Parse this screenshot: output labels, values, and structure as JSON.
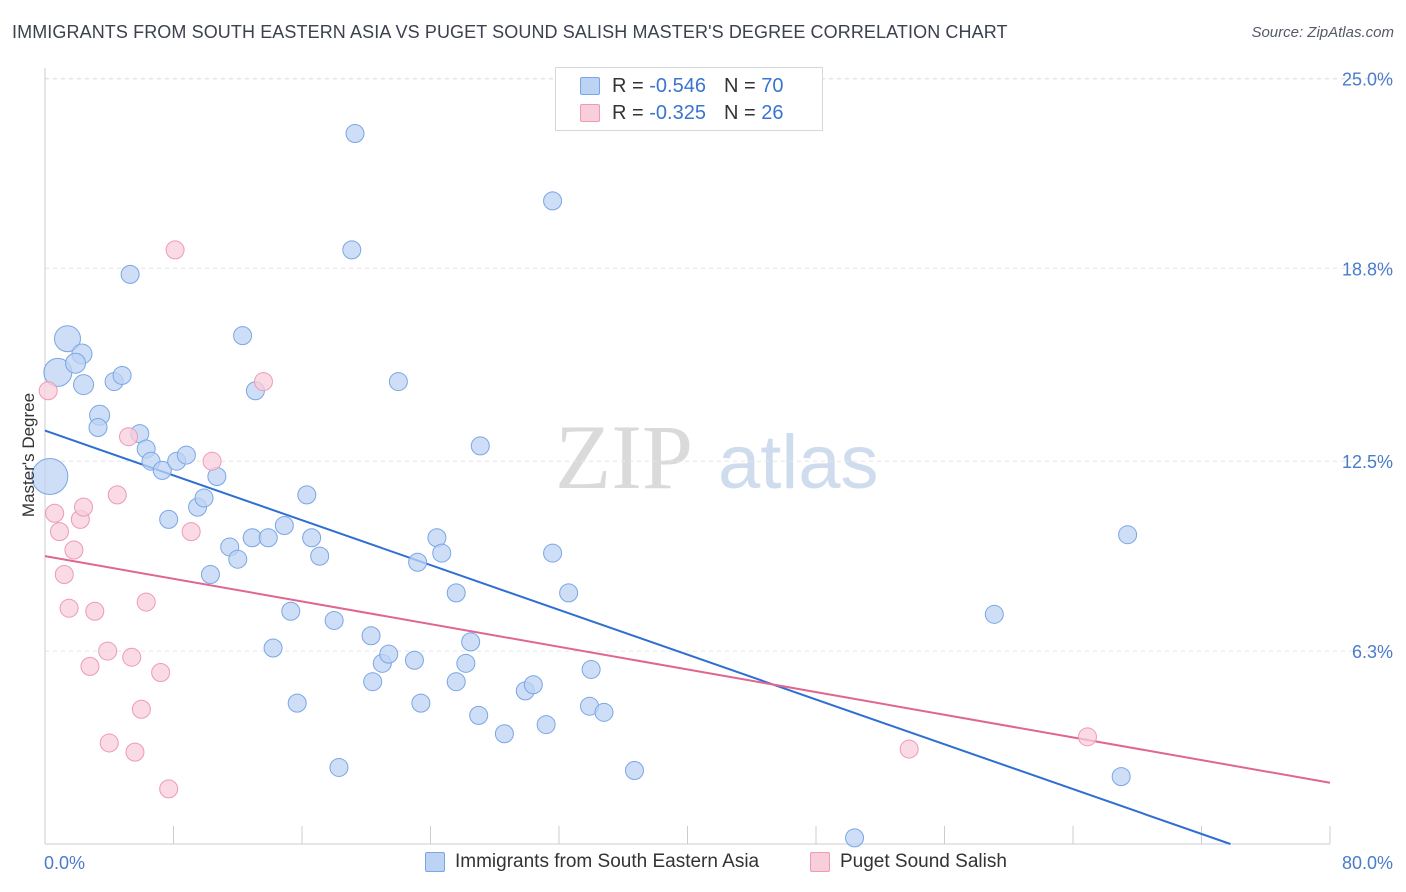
{
  "title": "IMMIGRANTS FROM SOUTH EASTERN ASIA VS PUGET SOUND SALISH MASTER'S DEGREE CORRELATION CHART",
  "source": "Source: ZipAtlas.com",
  "watermark": {
    "zip": "ZIP",
    "atlas": "atlas"
  },
  "legend_stats": [
    {
      "r_label": "R =",
      "r_value": "-0.546",
      "n_label": "N =",
      "n_value": "70"
    },
    {
      "r_label": "R =",
      "r_value": "-0.325",
      "n_label": "N =",
      "n_value": "26"
    }
  ],
  "chart_data": {
    "type": "scatter",
    "title": "IMMIGRANTS FROM SOUTH EASTERN ASIA VS PUGET SOUND SALISH MASTER'S DEGREE CORRELATION CHART",
    "xlabel": "",
    "ylabel": "Master's Degree",
    "xlim": [
      0,
      80
    ],
    "ylim": [
      0,
      25.6
    ],
    "x_tick_labels": [
      "0.0%",
      "80.0%"
    ],
    "y_ticks": [
      6.3,
      12.5,
      18.8,
      25.0
    ],
    "y_tick_labels": [
      "6.3%",
      "12.5%",
      "18.8%",
      "25.0%"
    ],
    "grid": "horizontal dashed",
    "legend_position": "bottom",
    "series": [
      {
        "name": "Immigrants from South Eastern Asia",
        "color": "#7aa6e6",
        "fill": "#bcd3f3",
        "trend": {
          "x": [
            0,
            73.8
          ],
          "y": [
            13.5,
            0.0
          ],
          "color": "#2f6fd1"
        },
        "points": [
          [
            0.3,
            12.0,
            18
          ],
          [
            0.8,
            15.4,
            14
          ],
          [
            1.4,
            16.5,
            13
          ],
          [
            2.3,
            16.0,
            10
          ],
          [
            1.9,
            15.7,
            10
          ],
          [
            2.4,
            15.0,
            10
          ],
          [
            5.3,
            18.6,
            9
          ],
          [
            3.4,
            14.0,
            10
          ],
          [
            3.3,
            13.6,
            9
          ],
          [
            4.3,
            15.1,
            9
          ],
          [
            4.8,
            15.3,
            9
          ],
          [
            5.9,
            13.4,
            9
          ],
          [
            6.3,
            12.9,
            9
          ],
          [
            6.6,
            12.5,
            9
          ],
          [
            7.3,
            12.2,
            9
          ],
          [
            8.2,
            12.5,
            9
          ],
          [
            8.8,
            12.7,
            9
          ],
          [
            9.5,
            11.0,
            9
          ],
          [
            9.9,
            11.3,
            9
          ],
          [
            10.7,
            12.0,
            9
          ],
          [
            7.7,
            10.6,
            9
          ],
          [
            11.5,
            9.7,
            9
          ],
          [
            12.0,
            9.3,
            9
          ],
          [
            12.9,
            10.0,
            9
          ],
          [
            13.9,
            10.0,
            9
          ],
          [
            14.9,
            10.4,
            9
          ],
          [
            16.3,
            11.4,
            9
          ],
          [
            16.6,
            10.0,
            9
          ],
          [
            17.1,
            9.4,
            9
          ],
          [
            10.3,
            8.8,
            9
          ],
          [
            12.3,
            16.6,
            9
          ],
          [
            13.1,
            14.8,
            9
          ],
          [
            19.3,
            23.2,
            9
          ],
          [
            19.1,
            19.4,
            9
          ],
          [
            22.0,
            15.1,
            9
          ],
          [
            27.1,
            13.0,
            9
          ],
          [
            31.6,
            21.0,
            9
          ],
          [
            15.3,
            7.6,
            9
          ],
          [
            18.0,
            7.3,
            9
          ],
          [
            14.2,
            6.4,
            9
          ],
          [
            20.3,
            6.8,
            9
          ],
          [
            21.0,
            5.9,
            9
          ],
          [
            21.4,
            6.2,
            9
          ],
          [
            23.0,
            6.0,
            9
          ],
          [
            20.4,
            5.3,
            9
          ],
          [
            15.7,
            4.6,
            9
          ],
          [
            23.4,
            4.6,
            9
          ],
          [
            23.2,
            9.2,
            9
          ],
          [
            24.4,
            10.0,
            9
          ],
          [
            24.7,
            9.5,
            9
          ],
          [
            25.6,
            8.2,
            9
          ],
          [
            26.5,
            6.6,
            9
          ],
          [
            26.2,
            5.9,
            9
          ],
          [
            25.6,
            5.3,
            9
          ],
          [
            27.0,
            4.2,
            9
          ],
          [
            28.6,
            3.6,
            9
          ],
          [
            29.9,
            5.0,
            9
          ],
          [
            30.4,
            5.2,
            9
          ],
          [
            31.2,
            3.9,
            9
          ],
          [
            31.6,
            9.5,
            9
          ],
          [
            32.6,
            8.2,
            9
          ],
          [
            34.0,
            5.7,
            9
          ],
          [
            33.9,
            4.5,
            9
          ],
          [
            34.8,
            4.3,
            9
          ],
          [
            36.7,
            2.4,
            9
          ],
          [
            18.3,
            2.5,
            9
          ],
          [
            50.4,
            0.2,
            9
          ],
          [
            59.1,
            7.5,
            9
          ],
          [
            67.4,
            10.1,
            9
          ],
          [
            67.0,
            2.2,
            9
          ]
        ]
      },
      {
        "name": "Puget Sound Salish",
        "color": "#ee9ab5",
        "fill": "#f8cedb",
        "trend": {
          "x": [
            0,
            80
          ],
          "y": [
            9.4,
            2.0
          ],
          "color": "#e06690"
        },
        "points": [
          [
            0.2,
            14.8,
            9
          ],
          [
            0.6,
            10.8,
            9
          ],
          [
            0.9,
            10.2,
            9
          ],
          [
            1.2,
            8.8,
            9
          ],
          [
            1.5,
            7.7,
            9
          ],
          [
            1.8,
            9.6,
            9
          ],
          [
            2.2,
            10.6,
            9
          ],
          [
            2.4,
            11.0,
            9
          ],
          [
            3.1,
            7.6,
            9
          ],
          [
            2.8,
            5.8,
            9
          ],
          [
            3.9,
            6.3,
            9
          ],
          [
            4.5,
            11.4,
            9
          ],
          [
            4.0,
            3.3,
            9
          ],
          [
            5.2,
            13.3,
            9
          ],
          [
            5.4,
            6.1,
            9
          ],
          [
            5.6,
            3.0,
            9
          ],
          [
            6.0,
            4.4,
            9
          ],
          [
            6.3,
            7.9,
            9
          ],
          [
            7.2,
            5.6,
            9
          ],
          [
            7.7,
            1.8,
            9
          ],
          [
            8.1,
            19.4,
            9
          ],
          [
            9.1,
            10.2,
            9
          ],
          [
            10.4,
            12.5,
            9
          ],
          [
            13.6,
            15.1,
            9
          ],
          [
            53.8,
            3.1,
            9
          ],
          [
            64.9,
            3.5,
            9
          ]
        ]
      }
    ]
  }
}
